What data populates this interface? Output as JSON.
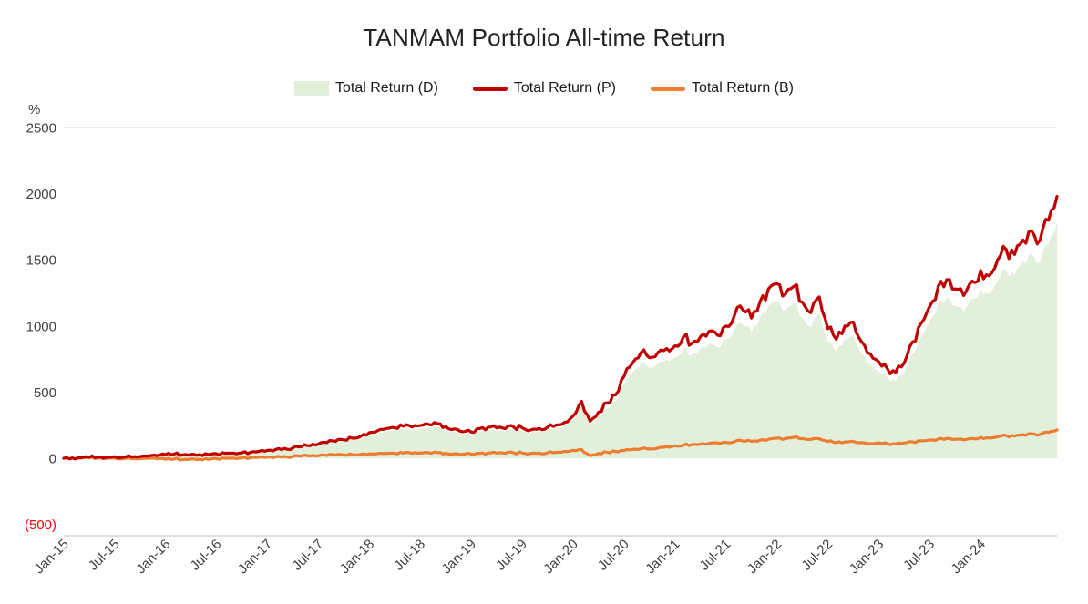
{
  "chart_data": {
    "type": "area+line",
    "title": "TANMAM Portfolio All-time Return",
    "ylabel": "%",
    "xlabel": "",
    "ylim": [
      -500,
      2500
    ],
    "grid": "top-border-and-bottom-axis-only",
    "legend_position": "top",
    "y_ticks": [
      {
        "label": "2500",
        "value": 2500,
        "color": "#404040"
      },
      {
        "label": "2000",
        "value": 2000,
        "color": "#404040"
      },
      {
        "label": "1500",
        "value": 1500,
        "color": "#404040"
      },
      {
        "label": "1000",
        "value": 1000,
        "color": "#404040"
      },
      {
        "label": "500",
        "value": 500,
        "color": "#404040"
      },
      {
        "label": "0",
        "value": 0,
        "color": "#404040"
      },
      {
        "label": "(500)",
        "value": -500,
        "color": "#FF0000"
      }
    ],
    "x_tick_labels": [
      "Jan-15",
      "Jul-15",
      "Jan-16",
      "Jul-16",
      "Jan-17",
      "Jul-17",
      "Jan-18",
      "Jul-18",
      "Jan-19",
      "Jul-19",
      "Jan-20",
      "Jul-20",
      "Jan-21",
      "Jul-21",
      "Jan-22",
      "Jul-22",
      "Jan-23",
      "Jul-23",
      "Jan-24"
    ],
    "x_unit": "month",
    "x_months_per_tick": 6,
    "series": [
      {
        "name": "Total Return (D)",
        "type": "area",
        "color": "#E2EFDA",
        "values": [
          0,
          2,
          4,
          6,
          8,
          5,
          10,
          6,
          8,
          12,
          15,
          17,
          24,
          28,
          22,
          26,
          24,
          24,
          30,
          33,
          35,
          37,
          40,
          46,
          54,
          61,
          67,
          72,
          79,
          85,
          97,
          106,
          115,
          126,
          137,
          151,
          176,
          189,
          202,
          207,
          218,
          212,
          223,
          230,
          236,
          216,
          200,
          180,
          178,
          203,
          212,
          207,
          202,
          212,
          207,
          193,
          203,
          212,
          227,
          245,
          288,
          387,
          252,
          315,
          378,
          432,
          558,
          648,
          720,
          684,
          720,
          747,
          765,
          828,
          783,
          828,
          864,
          837,
          900,
          972,
          1008,
          954,
          1062,
          1152,
          1188,
          1116,
          1170,
          1062,
          990,
          1098,
          882,
          810,
          900,
          927,
          792,
          711,
          657,
          612,
          585,
          648,
          792,
          918,
          1035,
          1170,
          1215,
          1152,
          1107,
          1206,
          1278,
          1242,
          1350,
          1422,
          1386,
          1485,
          1548,
          1485,
          1620,
          1780
        ]
      },
      {
        "name": "Total Return (P)",
        "type": "line",
        "color": "#C00000",
        "values": [
          0,
          3,
          5,
          8,
          10,
          6,
          12,
          8,
          10,
          14,
          18,
          20,
          28,
          32,
          26,
          30,
          28,
          28,
          34,
          38,
          40,
          42,
          45,
          52,
          60,
          68,
          75,
          80,
          88,
          95,
          108,
          118,
          128,
          140,
          152,
          168,
          195,
          210,
          225,
          230,
          242,
          236,
          248,
          256,
          262,
          240,
          222,
          200,
          198,
          226,
          236,
          230,
          224,
          236,
          230,
          214,
          226,
          236,
          252,
          272,
          320,
          430,
          280,
          350,
          420,
          480,
          620,
          720,
          800,
          760,
          800,
          830,
          850,
          920,
          870,
          920,
          960,
          930,
          1000,
          1080,
          1120,
          1060,
          1180,
          1280,
          1320,
          1240,
          1300,
          1180,
          1100,
          1220,
          980,
          900,
          1000,
          1030,
          880,
          790,
          730,
          680,
          650,
          720,
          880,
          1020,
          1150,
          1300,
          1350,
          1280,
          1230,
          1340,
          1420,
          1380,
          1500,
          1580,
          1540,
          1650,
          1720,
          1650,
          1800,
          1980
        ]
      },
      {
        "name": "Total Return (B)",
        "type": "line",
        "color": "#ED7D31",
        "values": [
          0,
          1,
          2,
          3,
          2,
          0,
          2,
          -2,
          -4,
          -2,
          0,
          -3,
          -8,
          -5,
          -10,
          -4,
          -6,
          -8,
          -2,
          0,
          2,
          3,
          5,
          8,
          10,
          12,
          14,
          15,
          17,
          18,
          20,
          22,
          24,
          26,
          28,
          30,
          34,
          36,
          38,
          37,
          39,
          38,
          40,
          42,
          43,
          38,
          34,
          30,
          32,
          38,
          40,
          39,
          38,
          41,
          40,
          37,
          39,
          42,
          46,
          52,
          60,
          66,
          20,
          38,
          46,
          52,
          58,
          66,
          72,
          70,
          78,
          88,
          95,
          100,
          104,
          108,
          112,
          116,
          120,
          126,
          130,
          128,
          136,
          144,
          152,
          148,
          158,
          150,
          142,
          148,
          128,
          118,
          124,
          128,
          118,
          112,
          116,
          112,
          108,
          116,
          124,
          132,
          138,
          146,
          150,
          144,
          140,
          150,
          158,
          154,
          164,
          172,
          168,
          178,
          186,
          180,
          196,
          215
        ]
      }
    ]
  }
}
